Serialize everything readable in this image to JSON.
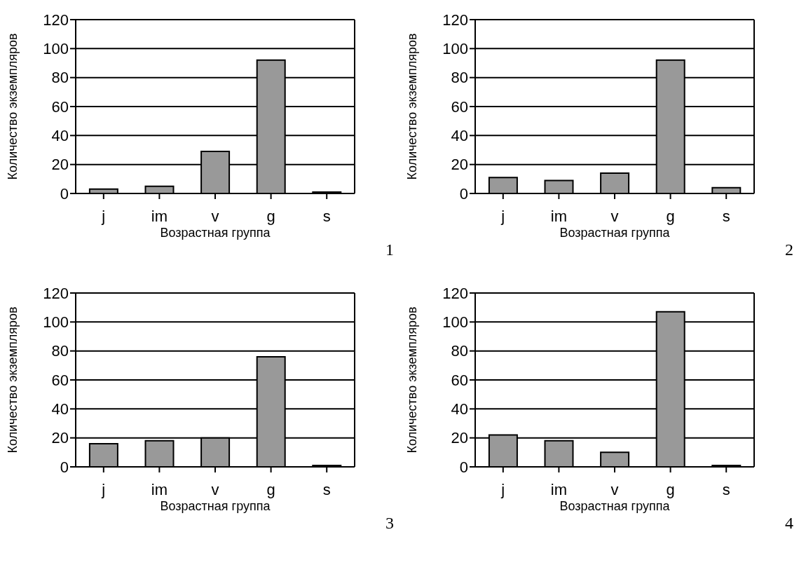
{
  "chart_data": [
    {
      "type": "bar",
      "categories": [
        "j",
        "im",
        "v",
        "g",
        "s"
      ],
      "values": [
        3,
        5,
        29,
        92,
        1
      ],
      "color": "#999999",
      "xlabel": "Возрастная группа",
      "ylabel": "Количество экземпляров",
      "ylim": [
        0,
        120
      ],
      "yticks": [
        0,
        20,
        40,
        60,
        80,
        100,
        120
      ],
      "grid": "y",
      "annotations": [
        "1"
      ]
    },
    {
      "type": "bar",
      "categories": [
        "j",
        "im",
        "v",
        "g",
        "s"
      ],
      "values": [
        11,
        9,
        14,
        92,
        4
      ],
      "color": "#999999",
      "xlabel": "Возрастная группа",
      "ylabel": "Количество экземпляров",
      "ylim": [
        0,
        120
      ],
      "yticks": [
        0,
        20,
        40,
        60,
        80,
        100,
        120
      ],
      "grid": "y",
      "annotations": [
        "2"
      ]
    },
    {
      "type": "bar",
      "categories": [
        "j",
        "im",
        "v",
        "g",
        "s"
      ],
      "values": [
        16,
        18,
        20,
        76,
        1
      ],
      "color": "#999999",
      "xlabel": "Возрастная группа",
      "ylabel": "Количество экземпляров",
      "ylim": [
        0,
        120
      ],
      "yticks": [
        0,
        20,
        40,
        60,
        80,
        100,
        120
      ],
      "grid": "y",
      "annotations": [
        "3"
      ]
    },
    {
      "type": "bar",
      "categories": [
        "j",
        "im",
        "v",
        "g",
        "s"
      ],
      "values": [
        22,
        18,
        10,
        107,
        1
      ],
      "color": "#999999",
      "xlabel": "Возрастная группа",
      "ylabel": "Количество экземпляров",
      "ylim": [
        0,
        120
      ],
      "yticks": [
        0,
        20,
        40,
        60,
        80,
        100,
        120
      ],
      "grid": "y",
      "annotations": [
        "4"
      ]
    }
  ]
}
